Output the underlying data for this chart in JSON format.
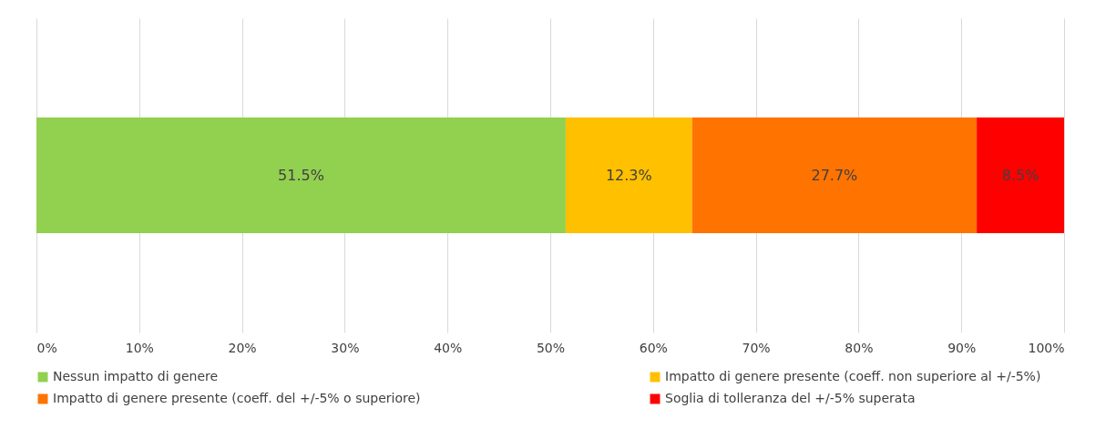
{
  "chart_data": {
    "type": "bar",
    "orientation": "horizontal",
    "stacked": true,
    "categories": [
      null
    ],
    "series": [
      {
        "name": "Nessun impatto di genere",
        "color": "#92d050",
        "values": [
          51.5
        ],
        "value_labels": [
          "51.5%"
        ]
      },
      {
        "name": "Impatto di genere presente (coeff. non superiore al +/-5%)",
        "color": "#ffc000",
        "values": [
          12.3
        ],
        "value_labels": [
          "12.3%"
        ]
      },
      {
        "name": "Impatto di genere presente (coeff. del +/-5% o superiore)",
        "color": "#ff7300",
        "values": [
          27.7
        ],
        "value_labels": [
          "27.7%"
        ]
      },
      {
        "name": "Soglia di tolleranza del +/-5% superata",
        "color": "#ff0000",
        "values": [
          8.5
        ],
        "value_labels": [
          "8.5%"
        ]
      }
    ],
    "xlim": [
      0,
      100
    ],
    "xticks": [
      {
        "value": 0,
        "label": "0%"
      },
      {
        "value": 10,
        "label": "10%"
      },
      {
        "value": 20,
        "label": "20%"
      },
      {
        "value": 30,
        "label": "30%"
      },
      {
        "value": 40,
        "label": "40%"
      },
      {
        "value": 50,
        "label": "50%"
      },
      {
        "value": 60,
        "label": "60%"
      },
      {
        "value": 70,
        "label": "70%"
      },
      {
        "value": 80,
        "label": "80%"
      },
      {
        "value": 90,
        "label": "90%"
      },
      {
        "value": 100,
        "label": "100%"
      }
    ],
    "grid": "x",
    "legend": "bottom",
    "tick_labels": "x"
  }
}
